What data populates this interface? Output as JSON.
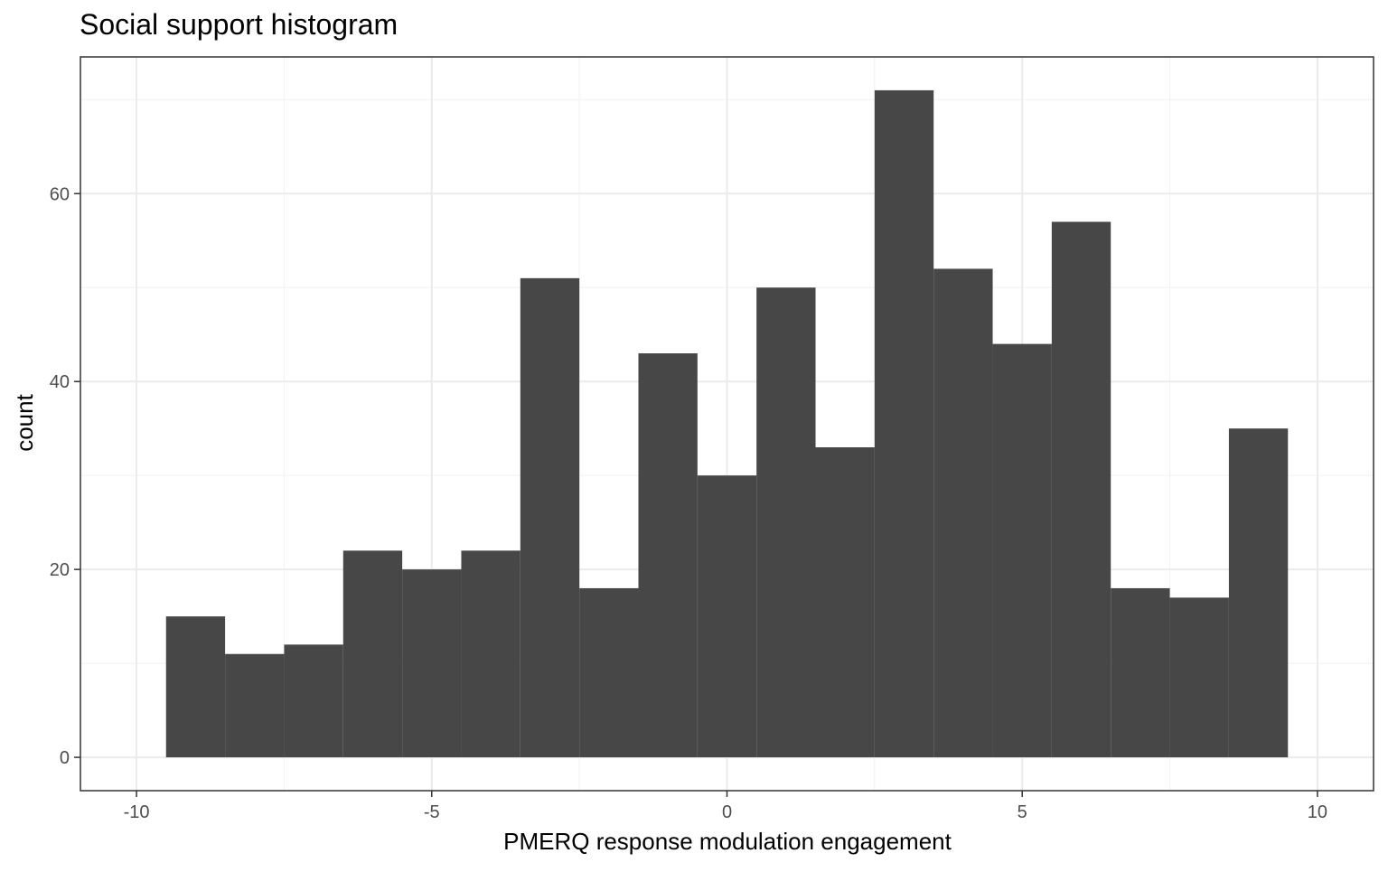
{
  "chart_data": {
    "type": "bar",
    "title": "Social support histogram",
    "xlabel": "PMERQ response modulation engagement",
    "ylabel": "count",
    "xlim": [
      -10.95,
      10.95
    ],
    "ylim": [
      -3.55,
      74.55
    ],
    "x_ticks": [
      -10,
      -5,
      0,
      5,
      10
    ],
    "x_tick_labels": [
      "-10",
      "-5",
      "0",
      "5",
      "10"
    ],
    "y_ticks": [
      0,
      20,
      40,
      60
    ],
    "y_tick_labels": [
      "0",
      "20",
      "40",
      "60"
    ],
    "grid": true,
    "bin_width": 1,
    "bins": [
      {
        "x": -9,
        "count": 15
      },
      {
        "x": -8,
        "count": 11
      },
      {
        "x": -7,
        "count": 12
      },
      {
        "x": -6,
        "count": 22
      },
      {
        "x": -5,
        "count": 20
      },
      {
        "x": -4,
        "count": 22
      },
      {
        "x": -3,
        "count": 51
      },
      {
        "x": -2,
        "count": 18
      },
      {
        "x": -1,
        "count": 43
      },
      {
        "x": 0,
        "count": 30
      },
      {
        "x": 1,
        "count": 50
      },
      {
        "x": 2,
        "count": 33
      },
      {
        "x": 3,
        "count": 71
      },
      {
        "x": 4,
        "count": 52
      },
      {
        "x": 5,
        "count": 44
      },
      {
        "x": 6,
        "count": 57
      },
      {
        "x": 7,
        "count": 18
      },
      {
        "x": 8,
        "count": 17
      },
      {
        "x": 9,
        "count": 35
      }
    ],
    "colors": {
      "bar": "#474747",
      "panel_border": "#333333",
      "grid_major": "#ebebeb",
      "grid_minor": "#f3f3f3",
      "tick_text": "#4d4d4d",
      "text": "#000000"
    }
  }
}
